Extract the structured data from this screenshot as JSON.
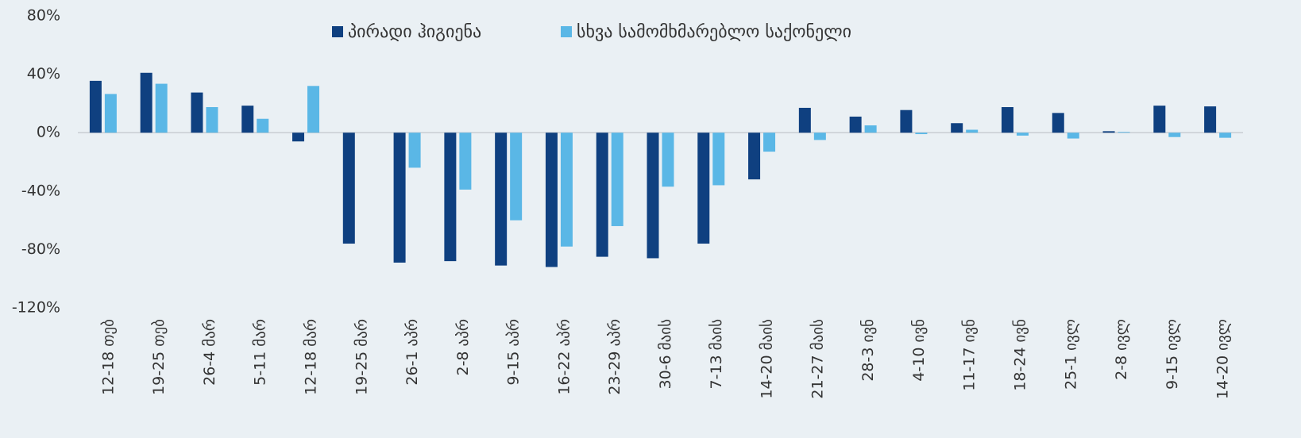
{
  "chart_data": {
    "type": "bar",
    "categories": [
      "12-18 თებ",
      "19-25 თებ",
      "26-4 მარ",
      "5-11 მარ",
      "12-18 მარ",
      "19-25 მარ",
      "26-1 აპრ",
      "2-8 აპრ",
      "9-15 აპრ",
      "16-22 აპრ",
      "23-29 აპრ",
      "30-6 მაის",
      "7-13 მაის",
      "14-20 მაის",
      "21-27 მაის",
      "28-3 ივნ",
      "4-10 ივნ",
      "11-17 ივნ",
      "18-24 ივნ",
      "25-1 ივლ",
      "2-8 ივლ",
      "9-15 ივლ",
      "14-20 ივლ"
    ],
    "series": [
      {
        "name": "პირადი ჰიგიენა",
        "color": "#0f4080",
        "values": [
          35.5,
          41,
          27.5,
          18.5,
          -6,
          -76,
          -89,
          -88,
          -91,
          -92,
          -85,
          -86,
          -76,
          -32,
          17,
          11,
          15.5,
          6.5,
          17.5,
          13.5,
          1,
          18.5,
          18
        ]
      },
      {
        "name": "სხვა სამომხმარებლო საქონელი",
        "color": "#5ab7e6",
        "values": [
          26.5,
          33.5,
          17.5,
          9.5,
          32,
          null,
          -24,
          -39,
          -60,
          -78,
          -64,
          -37,
          -36,
          -13,
          -5,
          5,
          -1,
          2,
          -2,
          -4,
          0.5,
          -3,
          -3.5
        ]
      }
    ],
    "ylim": [
      -120,
      80
    ],
    "yticks": [
      {
        "value": -120,
        "label": "-120%"
      },
      {
        "value": -80,
        "label": "-80%"
      },
      {
        "value": -40,
        "label": "-40%"
      },
      {
        "value": 0,
        "label": "0%"
      },
      {
        "value": 40,
        "label": "40%"
      },
      {
        "value": 80,
        "label": "80%"
      }
    ],
    "legend": "top"
  }
}
